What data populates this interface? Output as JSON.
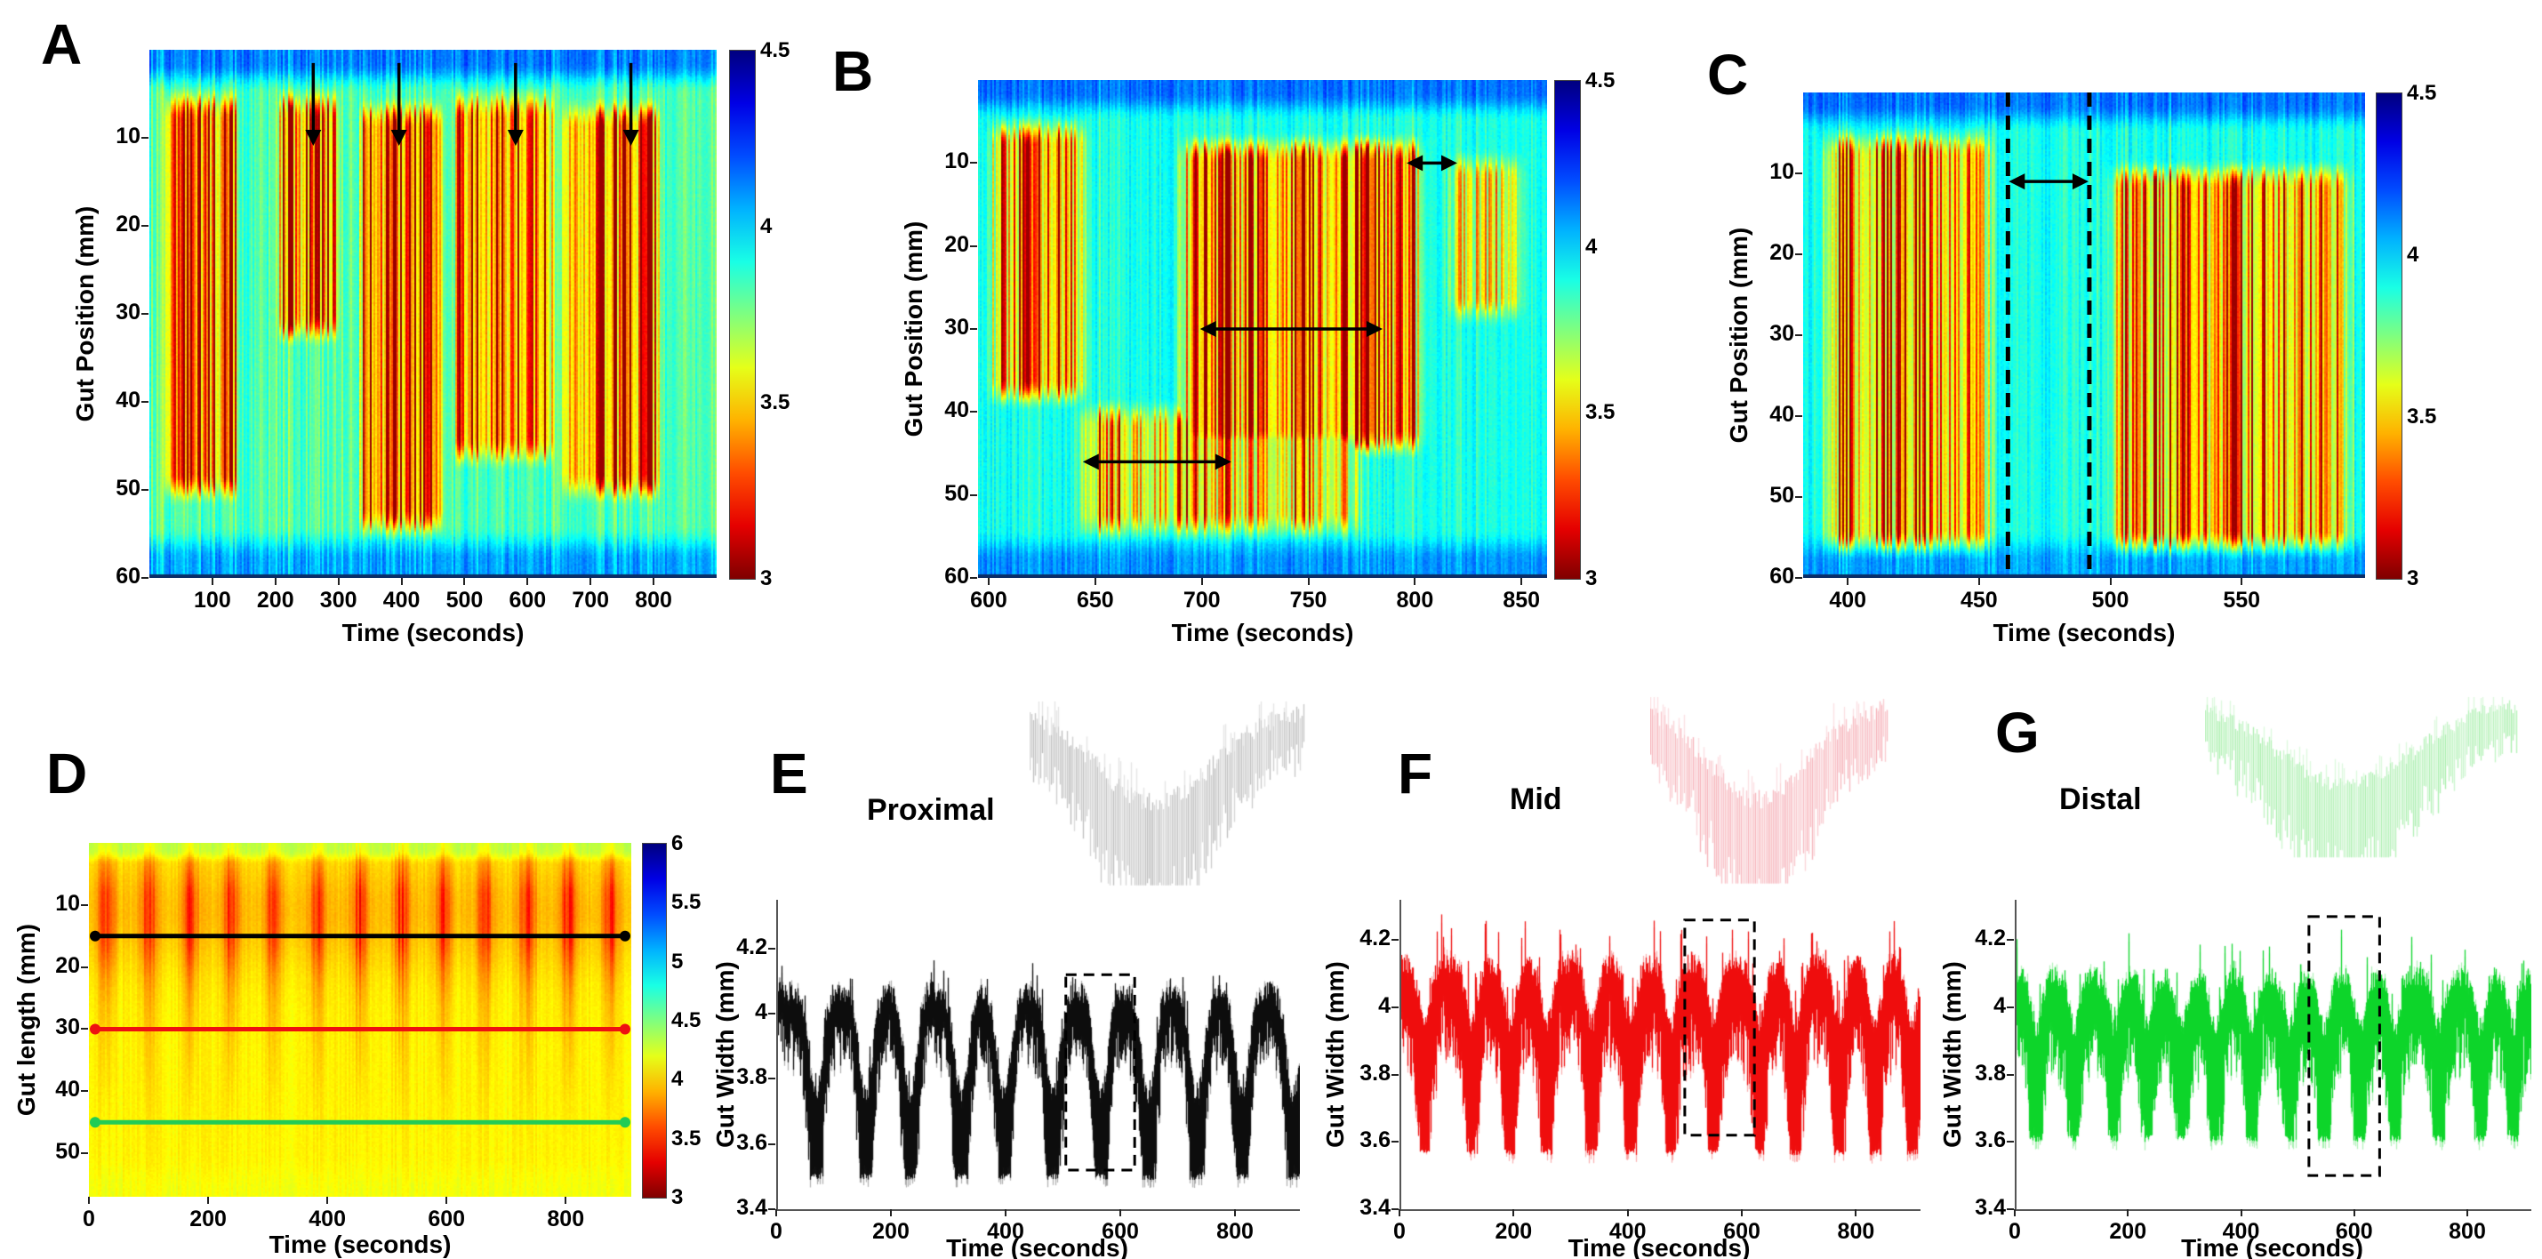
{
  "figure": {
    "background": "#ffffff",
    "panel_letters": [
      "A",
      "B",
      "C",
      "D",
      "E",
      "F",
      "G"
    ]
  },
  "colormap": {
    "name": "jet-reversed-vertical",
    "top_to_bottom_stops": [
      "#00008f",
      "#0020ff",
      "#00a0ff",
      "#20ffdf",
      "#80ff80",
      "#dfff20",
      "#ffa000",
      "#ff2000",
      "#8f0000"
    ]
  },
  "chart_data": [
    {
      "id": "A",
      "panel_label": "A",
      "type": "heatmap",
      "xlabel": "Time (seconds)",
      "ylabel": "Gut Position (mm)",
      "xlim": [
        0,
        900
      ],
      "xticks": [
        100,
        200,
        300,
        400,
        500,
        600,
        700,
        800
      ],
      "ylim": [
        0,
        60
      ],
      "yticks": [
        10,
        20,
        30,
        40,
        50,
        60
      ],
      "colorbar": {
        "min": 3,
        "max": 4.5,
        "ticks": [
          "4.5",
          "4",
          "3.5",
          "3"
        ]
      },
      "annotations": {
        "down_arrows": [
          {
            "t": 260,
            "p1": 1.5,
            "p2": 10.5
          },
          {
            "t": 396,
            "p1": 1.5,
            "p2": 10.5
          },
          {
            "t": 581,
            "p1": 1.5,
            "p2": 10.5
          },
          {
            "t": 764,
            "p1": 1.5,
            "p2": 10.5
          }
        ]
      },
      "pattern": {
        "background_value": 3.88,
        "top_band_value": 4.18,
        "bottom_band_value": 4.12,
        "background_streaks": 0.55,
        "bursts": [
          [
            20,
            145,
            4,
            52,
            0.95
          ],
          [
            200,
            305,
            4,
            34,
            0.9
          ],
          [
            330,
            470,
            5,
            56,
            1.0
          ],
          [
            480,
            645,
            4,
            48,
            1.0
          ],
          [
            650,
            815,
            5,
            52,
            0.95
          ]
        ]
      }
    },
    {
      "id": "B",
      "panel_label": "B",
      "type": "heatmap",
      "xlabel": "Time (seconds)",
      "ylabel": "Gut Position (mm)",
      "xlim": [
        595,
        862
      ],
      "xticks": [
        600,
        650,
        700,
        750,
        800,
        850
      ],
      "ylim": [
        0,
        60
      ],
      "yticks": [
        10,
        20,
        30,
        40,
        50,
        60
      ],
      "colorbar": {
        "min": 3,
        "max": 4.5,
        "ticks": [
          "4.5",
          "4",
          "3.5",
          "3"
        ]
      },
      "annotations": {
        "h_arrows": [
          {
            "t1": 797,
            "t2": 819,
            "p": 10
          },
          {
            "t1": 700,
            "t2": 784,
            "p": 30
          },
          {
            "t1": 645,
            "t2": 713,
            "p": 46
          }
        ]
      },
      "pattern": {
        "background_value": 3.93,
        "top_band_value": 4.17,
        "bottom_band_value": 4.12,
        "background_streaks": 0.32,
        "bursts": [
          [
            596,
            650,
            4,
            40,
            0.95
          ],
          [
            686,
            808,
            6,
            46,
            1.0
          ],
          [
            638,
            778,
            38,
            56,
            0.7
          ],
          [
            812,
            855,
            8,
            30,
            0.55
          ]
        ]
      }
    },
    {
      "id": "C",
      "panel_label": "C",
      "type": "heatmap",
      "xlabel": "Time (seconds)",
      "ylabel": "Gut Position (mm)",
      "xlim": [
        383,
        597
      ],
      "xticks": [
        400,
        450,
        500,
        550
      ],
      "ylim": [
        0,
        60
      ],
      "yticks": [
        10,
        20,
        30,
        40,
        50,
        60
      ],
      "colorbar": {
        "min": 3,
        "max": 4.5,
        "ticks": [
          "4.5",
          "4",
          "3.5",
          "3"
        ]
      },
      "annotations": {
        "v_dashed": [
          461,
          492
        ],
        "h_arrows": [
          {
            "t1": 462,
            "t2": 491,
            "p": 11
          }
        ]
      },
      "pattern": {
        "background_value": 3.94,
        "top_band_value": 4.17,
        "bottom_band_value": 4.1,
        "background_streaks": 0.38,
        "bursts": [
          [
            386,
            459,
            4,
            58,
            0.92
          ],
          [
            495,
            596,
            8,
            58,
            0.88
          ]
        ]
      }
    },
    {
      "id": "D",
      "panel_label": "D",
      "type": "heatmap",
      "xlabel": "Time (seconds)",
      "ylabel": "Gut length (mm)",
      "xlim": [
        0,
        910
      ],
      "xticks": [
        0,
        200,
        400,
        600,
        800
      ],
      "ylim": [
        0,
        57
      ],
      "yticks": [
        10,
        20,
        30,
        40,
        50
      ],
      "colorbar": {
        "min": 3,
        "max": 6,
        "ticks": [
          "6",
          "5.5",
          "5",
          "4.5",
          "4",
          "3.5",
          "3"
        ]
      },
      "annotations": {
        "h_lines": [
          {
            "p": 15,
            "color": "#000000"
          },
          {
            "p": 30,
            "color": "#ee1111"
          },
          {
            "p": 45,
            "color": "#22cc55"
          }
        ]
      },
      "pattern": {
        "background_value": 4.1,
        "top_band_value": 4.35,
        "bottom_band_value": 4.15,
        "plume_strength": 0.6,
        "plume_centers": [
          30,
          100,
          170,
          240,
          310,
          385,
          455,
          525,
          595,
          665,
          735,
          805,
          875
        ]
      }
    },
    {
      "id": "E",
      "panel_label": "E",
      "type": "line",
      "series_label": "Proximal",
      "color": "#000000",
      "inset_color": "#b5b5b5",
      "xlabel": "Time (seconds)",
      "ylabel": "Gut Width (mm)",
      "xlim": [
        0,
        910
      ],
      "xticks": [
        0,
        200,
        400,
        600,
        800
      ],
      "ylim": [
        3.4,
        4.35
      ],
      "yticks": [
        4.2,
        4,
        3.8,
        3.6,
        3.4
      ],
      "trace": {
        "top_base": 4.07,
        "top_dip": 0.32,
        "band_min": 0.1,
        "band_amp": 0.28,
        "floor": 3.49,
        "dip_start": 65,
        "dip_step": 80,
        "dip_width": 17,
        "spike": 0.05
      },
      "annotations": {
        "dashed_box": [
          505,
          3.52,
          625,
          4.12
        ]
      }
    },
    {
      "id": "F",
      "panel_label": "F",
      "type": "line",
      "series_label": "Mid",
      "color": "#ee0000",
      "inset_color": "#f5aab2",
      "xlabel": "Time (seconds)",
      "ylabel": "Gut Width (mm)",
      "xlim": [
        0,
        910
      ],
      "xticks": [
        0,
        200,
        400,
        600,
        800
      ],
      "ylim": [
        3.4,
        4.32
      ],
      "yticks": [
        4.2,
        4,
        3.8,
        3.6,
        3.4
      ],
      "trace": {
        "top_base": 4.13,
        "top_dip": 0.18,
        "band_min": 0.18,
        "band_amp": 0.3,
        "floor": 3.56,
        "dip_start": 40,
        "dip_step": 73,
        "dip_width": 14,
        "spike": 0.1
      },
      "annotations": {
        "dashed_box": [
          500,
          3.62,
          622,
          4.26
        ]
      }
    },
    {
      "id": "G",
      "panel_label": "G",
      "type": "line",
      "series_label": "Distal",
      "color": "#00d422",
      "inset_color": "#a0eda4",
      "xlabel": "Time (seconds)",
      "ylabel": "Gut Width (mm)",
      "xlim": [
        0,
        910
      ],
      "xticks": [
        0,
        200,
        400,
        600,
        800
      ],
      "ylim": [
        3.4,
        4.32
      ],
      "yticks": [
        4.2,
        4,
        3.8,
        3.6,
        3.4
      ],
      "trace": {
        "top_base": 4.09,
        "top_dip": 0.15,
        "band_min": 0.17,
        "band_amp": 0.26,
        "floor": 3.6,
        "dip_start": 35,
        "dip_step": 68,
        "dip_width": 13,
        "spike": 0.08
      },
      "annotations": {
        "dashed_box": [
          520,
          3.5,
          645,
          4.27
        ]
      }
    }
  ]
}
